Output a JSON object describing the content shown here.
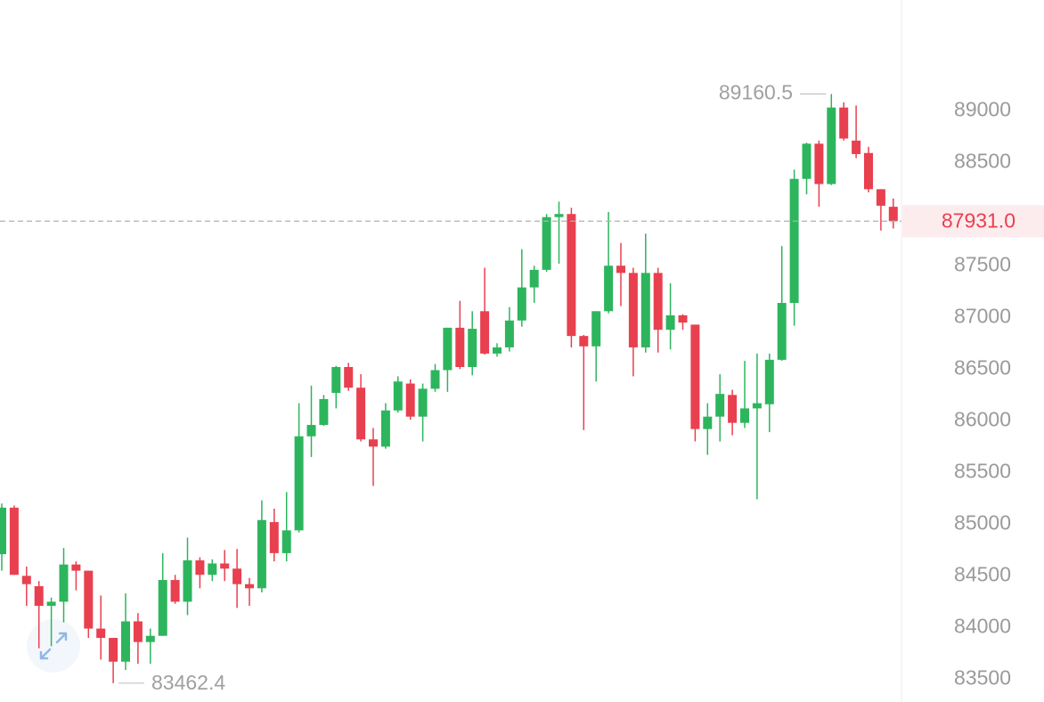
{
  "chart_data": {
    "type": "candlestick",
    "up_color": "#2db55d",
    "down_color": "#e8404f",
    "ylim": [
      83280,
      90070
    ],
    "yticks": [
      83500,
      84000,
      84500,
      85000,
      85500,
      86000,
      86500,
      87000,
      87500,
      88000,
      88500,
      89000
    ],
    "last_price": {
      "value": 87931,
      "label": "87931.0"
    },
    "high_annotation": 89160.5,
    "low_annotation": 83462.4,
    "open": [
      84710,
      85160,
      84500,
      84400,
      84210,
      84250,
      84610,
      84550,
      83990,
      83900,
      83670,
      84060,
      83860,
      83920,
      84460,
      84250,
      84650,
      84510,
      84620,
      84570,
      84420,
      84380,
      85020,
      84720,
      84940,
      85850,
      85960,
      86270,
      86520,
      86320,
      85820,
      85750,
      86100,
      86360,
      86040,
      86310,
      86490,
      86900,
      86520,
      87060,
      86650,
      86710,
      86970,
      87290,
      87460,
      87970,
      88000,
      86820,
      86720,
      87060,
      87500,
      87430,
      86710,
      87430,
      86880,
      87020,
      86930,
      85920,
      86040,
      86250,
      85980,
      86120,
      86160,
      86590,
      87140,
      88340,
      88680,
      88290,
      89030,
      88710,
      88590,
      88240,
      88070
    ],
    "high": [
      85200,
      85180,
      84590,
      84450,
      84290,
      84770,
      84640,
      84550,
      84310,
      83900,
      84330,
      84140,
      83990,
      84720,
      84510,
      84870,
      84680,
      84660,
      84750,
      84760,
      84480,
      85230,
      85150,
      85310,
      86170,
      86340,
      86250,
      86530,
      86560,
      86450,
      85930,
      86170,
      86430,
      86400,
      86360,
      86550,
      86900,
      87160,
      87060,
      87480,
      86750,
      87100,
      87660,
      87500,
      88000,
      88120,
      88060,
      86830,
      87060,
      88020,
      87720,
      87480,
      87810,
      87480,
      87330,
      87030,
      86930,
      86170,
      86450,
      86300,
      86580,
      86650,
      86650,
      87690,
      88430,
      88690,
      88710,
      89160.5,
      89080,
      89050,
      88650,
      88240,
      88150
    ],
    "low": [
      84550,
      84510,
      84210,
      83800,
      83820,
      84050,
      84360,
      83900,
      83690,
      83462.4,
      83590,
      83650,
      83650,
      83920,
      84230,
      84120,
      84380,
      84450,
      84450,
      84190,
      84210,
      84340,
      84640,
      84640,
      84920,
      85650,
      85950,
      86120,
      86290,
      85800,
      85370,
      85730,
      86080,
      86010,
      85800,
      86280,
      86280,
      86500,
      86440,
      86640,
      86620,
      86670,
      86910,
      87140,
      87440,
      87520,
      86710,
      85910,
      86380,
      87040,
      87110,
      86430,
      86660,
      86660,
      86690,
      86880,
      85800,
      85670,
      85800,
      85860,
      85930,
      85240,
      85890,
      86580,
      86920,
      88190,
      88070,
      88280,
      88710,
      88540,
      88210,
      87840,
      87860
    ],
    "close": [
      85160,
      84510,
      84420,
      84210,
      84250,
      84610,
      84550,
      83990,
      83900,
      83670,
      84060,
      83860,
      83920,
      84460,
      84250,
      84650,
      84510,
      84620,
      84570,
      84420,
      84380,
      85040,
      84720,
      84940,
      85850,
      85960,
      86210,
      86520,
      86320,
      85820,
      85750,
      86100,
      86380,
      86040,
      86310,
      86490,
      86900,
      86520,
      86890,
      86650,
      86710,
      86970,
      87290,
      87460,
      87970,
      88000,
      86820,
      86720,
      87060,
      87500,
      87430,
      86710,
      87430,
      86880,
      87020,
      86950,
      85920,
      86040,
      86260,
      85980,
      86120,
      86170,
      86590,
      87140,
      88340,
      88680,
      88290,
      89030,
      88730,
      88580,
      88240,
      88080,
      87931
    ]
  }
}
